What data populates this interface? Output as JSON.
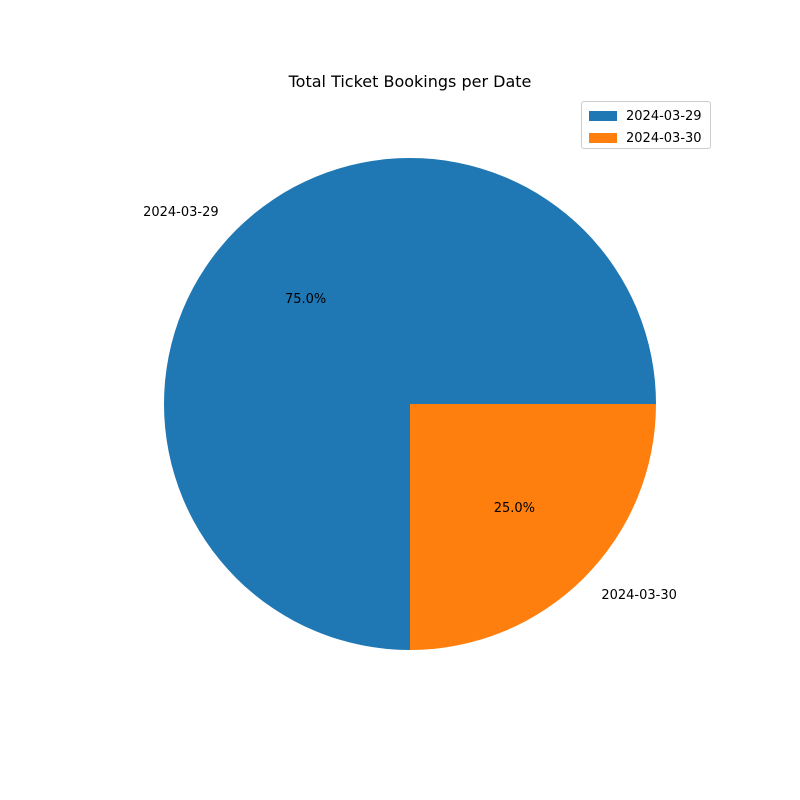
{
  "chart_data": {
    "type": "pie",
    "title": "Total Ticket Bookings per Date",
    "categories": [
      "2024-03-29",
      "2024-03-30"
    ],
    "values": [
      75.0,
      25.0
    ],
    "percent_labels": [
      "75.0%",
      "25.0%"
    ],
    "colors": [
      "#1f77b4",
      "#ff7f0e"
    ],
    "legend": {
      "placement": "top-right",
      "entries": [
        "2024-03-29",
        "2024-03-30"
      ]
    }
  }
}
